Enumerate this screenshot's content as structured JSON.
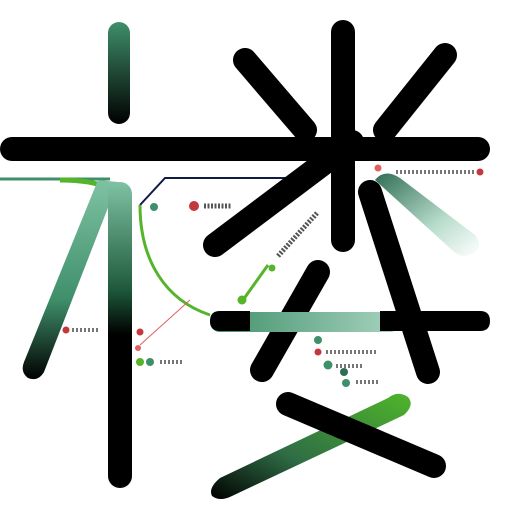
{
  "artwork": {
    "kind": "abstract-glyph-composition",
    "palette": {
      "stroke": "#000000",
      "green_dark": "#1f5a3c",
      "green_mid": "#3f8f6a",
      "green_light": "#7fc2a3",
      "lime": "#55b42a",
      "navy": "#0f1a45",
      "red": "#c4373c",
      "background": "#ffffff"
    },
    "labels": []
  }
}
